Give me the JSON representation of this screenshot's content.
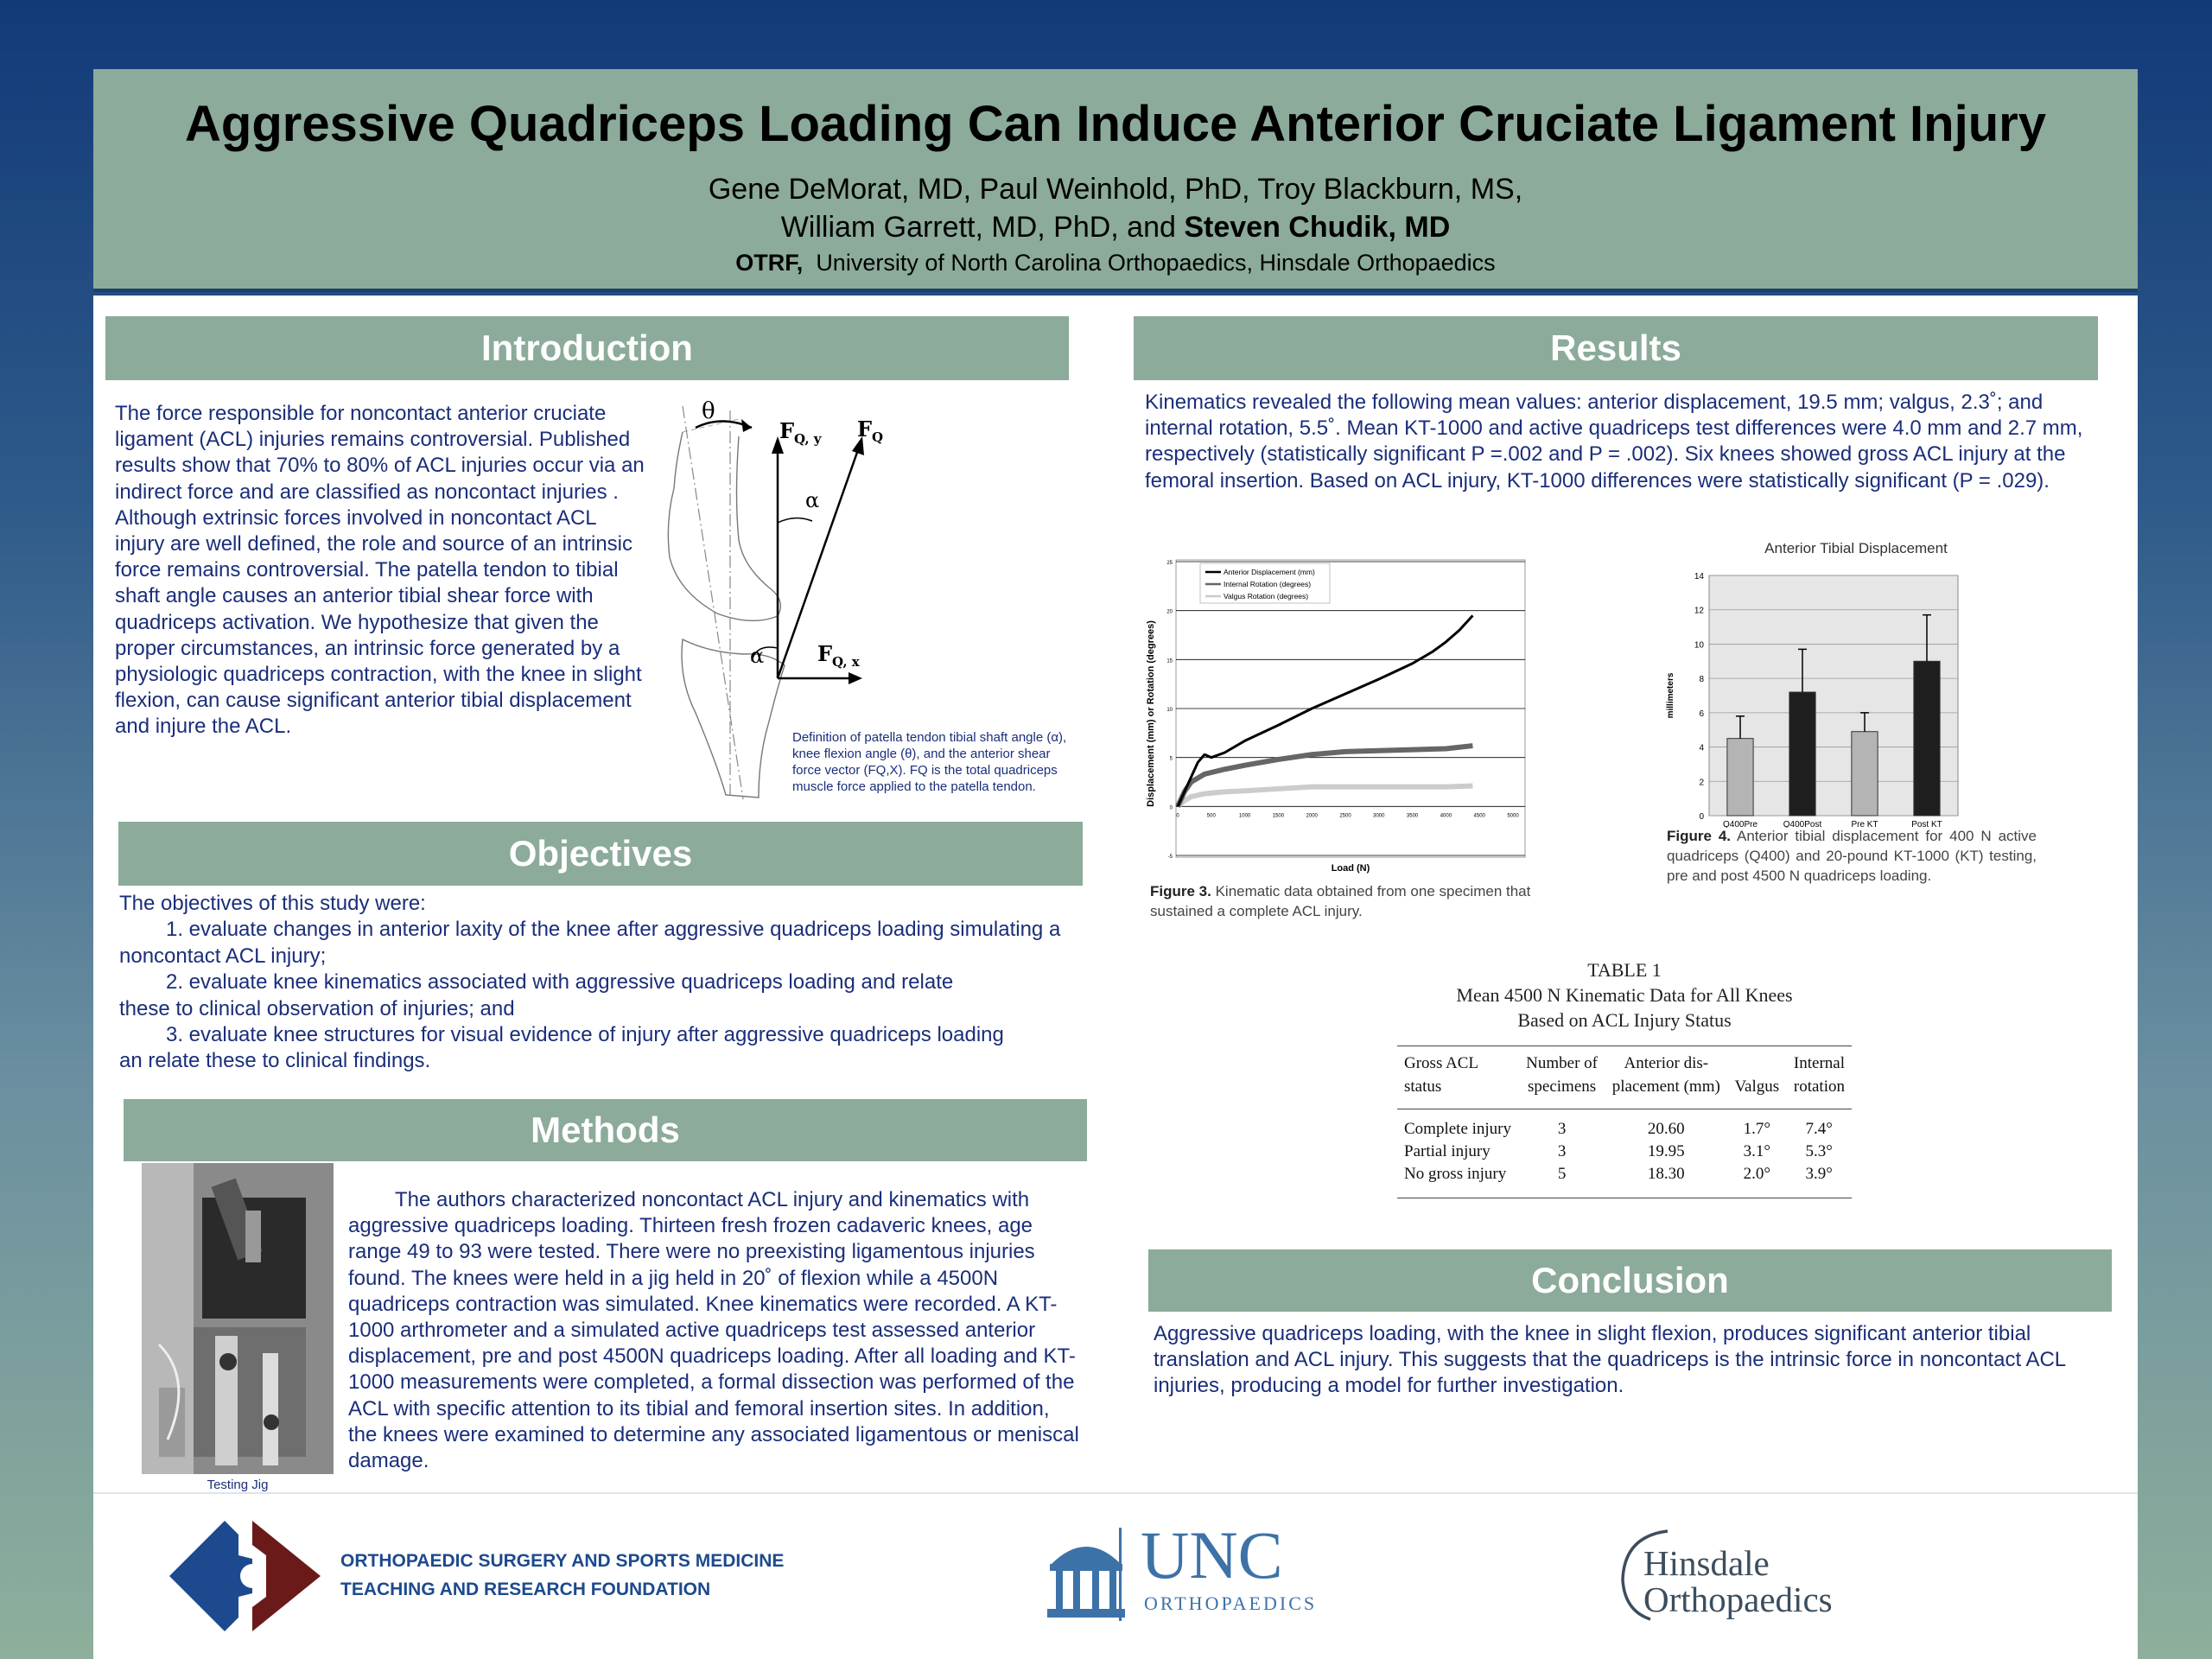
{
  "header": {
    "title": "Aggressive Quadriceps Loading Can Induce Anterior Cruciate Ligament Injury",
    "authors_line1": "Gene DeMorat, MD, Paul Weinhold, PhD, Troy Blackburn, MS,",
    "authors_line2_plain": "William Garrett, MD, PhD, and ",
    "authors_line2_bold": "Steven Chudik, MD",
    "affil_bold": "OTRF,",
    "affil_rest": "University of North Carolina Orthopaedics, Hinsdale Orthopaedics"
  },
  "intro": {
    "heading": "Introduction",
    "text": "The force responsible for noncontact anterior cruciate ligament (ACL) injuries remains controversial. Published results show that 70% to 80% of ACL injuries occur via an indirect force and are classified as noncontact injuries . Although extrinsic forces involved in noncontact ACL injury are well defined, the role and source of an intrinsic force remains controversial. The patella tendon to tibial shaft angle causes an anterior tibial shear force with quadriceps activation. We hypothesize that given the proper circumstances, an intrinsic force generated by a physiologic quadriceps contraction, with the knee in slight flexion, can cause significant anterior tibial displacement and injure the ACL.",
    "figure_caption": "Definition of patella tendon tibial shaft angle (α), knee flexion angle (θ), and the anterior shear force vector (FQ,X). FQ is the total quadriceps muscle force applied to the patella tendon.",
    "diagram_labels": {
      "theta": "θ",
      "alpha": "α",
      "fqy": "F",
      "fqy_sub": "Q, y",
      "fq": "F",
      "fq_sub": "Q",
      "fqx": "F",
      "fqx_sub": "Q, x"
    }
  },
  "objectives": {
    "heading": "Objectives",
    "lines": [
      "The objectives of this study were:",
      "1. evaluate changes in anterior laxity of the knee after aggressive quadriceps loading simulating a",
      "noncontact ACL injury;",
      "2. evaluate knee kinematics associated with aggressive quadriceps loading and relate",
      "these to clinical observation of injuries; and",
      "3. evaluate knee structures for visual evidence of injury after aggressive quadriceps loading",
      "an relate these to clinical findings."
    ]
  },
  "methods": {
    "heading": "Methods",
    "text": "The authors characterized noncontact ACL injury and kinematics with aggressive quadriceps loading. Thirteen fresh frozen cadaveric knees, age range 49 to 93 were tested. There were no preexisting ligamentous injuries found. The knees were held in a jig held in 20˚ of flexion while a 4500N quadriceps contraction was simulated. Knee kinematics were recorded. A KT-1000 arthrometer and a simulated active quadriceps test assessed anterior displacement, pre and post 4500N quadriceps loading. After all loading and KT-1000 measurements were completed, a formal dissection was performed of the ACL with specific attention to its tibial and femoral insertion sites. In addition, the knees were examined to determine any associated ligamentous or meniscal damage.",
    "photo_caption": "Testing Jig"
  },
  "results": {
    "heading": "Results",
    "text": "Kinematics revealed the following mean values: anterior displacement, 19.5 mm; valgus, 2.3˚; and internal rotation, 5.5˚. Mean KT-1000 and active quadriceps test differences were 4.0 mm and 2.7 mm, respectively (statistically significant P =.002 and P = .002). Six knees showed gross ACL injury at the femoral insertion. Based on ACL injury, KT-1000 differences were statistically significant (P = .029).",
    "fig3_caption_bold": "Figure 3.",
    "fig3_caption": " Kinematic data obtained from one specimen that sustained a complete ACL injury.",
    "fig4_caption_bold": "Figure 4.",
    "fig4_caption": " Anterior tibial displacement for 400 N active quadriceps (Q400) and 20-pound KT-1000 (KT) testing, pre and post 4500 N quadriceps loading."
  },
  "chart_data": [
    {
      "type": "line",
      "xlabel": "Load (N)",
      "ylabel": "Displacement (mm) or Rotation (degrees)",
      "xlim": [
        0,
        5000
      ],
      "ylim": [
        -5,
        25
      ],
      "xticks": [
        0,
        500,
        1000,
        1500,
        2000,
        2500,
        3000,
        3500,
        4000,
        4500,
        5000
      ],
      "yticks": [
        -5,
        0,
        5,
        10,
        15,
        20,
        25
      ],
      "grid": "horizontal",
      "legend_position": "top-left",
      "series": [
        {
          "name": "Anterior Displacement (mm)",
          "color": "#000000",
          "x": [
            0,
            100,
            200,
            300,
            400,
            500,
            700,
            1000,
            1500,
            2000,
            2500,
            3000,
            3500,
            3800,
            4000,
            4200,
            4400
          ],
          "y": [
            0,
            1.5,
            3,
            4.5,
            5.3,
            5,
            5.5,
            6.7,
            8.3,
            10,
            11.5,
            13,
            14.6,
            15.8,
            16.8,
            18,
            19.5
          ]
        },
        {
          "name": "Internal Rotation (degrees)",
          "color": "#666666",
          "x": [
            0,
            100,
            200,
            400,
            700,
            1000,
            1500,
            2000,
            2500,
            3000,
            3500,
            4000,
            4400
          ],
          "y": [
            0,
            1.5,
            2.5,
            3.3,
            3.8,
            4.2,
            4.8,
            5.3,
            5.6,
            5.7,
            5.8,
            5.9,
            6.2
          ]
        },
        {
          "name": "Valgus Rotation (degrees)",
          "color": "#cccccc",
          "x": [
            0,
            100,
            200,
            400,
            700,
            1000,
            1500,
            2000,
            2500,
            3000,
            3500,
            4000,
            4400
          ],
          "y": [
            0,
            0.6,
            1,
            1.3,
            1.5,
            1.6,
            1.8,
            2,
            2,
            2,
            2,
            2,
            2.1
          ]
        }
      ]
    },
    {
      "type": "bar",
      "title": "Anterior Tibial Displacement",
      "ylabel": "millimeters",
      "ylim": [
        0,
        14
      ],
      "yticks": [
        0,
        2,
        4,
        6,
        8,
        10,
        12,
        14
      ],
      "categories": [
        "Q400Pre",
        "Q400Post",
        "Pre KT",
        "Post KT"
      ],
      "values": [
        4.5,
        7.2,
        4.9,
        9.0
      ],
      "errors": [
        1.3,
        2.5,
        1.1,
        2.7
      ],
      "colors": [
        "#b4b4b4",
        "#1e1e1e",
        "#b4b4b4",
        "#1e1e1e"
      ]
    }
  ],
  "table1": {
    "label": "TABLE 1",
    "title1": "Mean 4500 N Kinematic Data for All Knees",
    "title2": "Based on ACL Injury Status",
    "headers": [
      [
        "Gross ACL",
        "status"
      ],
      [
        "Number of",
        "specimens"
      ],
      [
        "Anterior dis-",
        "placement (mm)"
      ],
      [
        "",
        "Valgus"
      ],
      [
        "Internal",
        "rotation"
      ]
    ],
    "rows": [
      [
        "Complete injury",
        "3",
        "20.60",
        "1.7°",
        "7.4°"
      ],
      [
        "Partial injury",
        "3",
        "19.95",
        "3.1°",
        "5.3°"
      ],
      [
        "No gross injury",
        "5",
        "18.30",
        "2.0°",
        "3.9°"
      ]
    ]
  },
  "conclusion": {
    "heading": "Conclusion",
    "text": "Aggressive quadriceps loading, with the knee in slight flexion, produces significant anterior tibial translation and ACL injury. This suggests that the quadriceps is the intrinsic force in noncontact ACL injuries, producing a model for further investigation."
  },
  "logos": {
    "otrf_line1": "ORTHOPAEDIC SURGERY AND SPORTS MEDICINE",
    "otrf_line2": "TEACHING AND RESEARCH FOUNDATION",
    "unc_main": "UNC",
    "unc_sub": "ORTHOPAEDICS",
    "hinsdale_line1": "Hinsdale",
    "hinsdale_line2": "Orthopaedics",
    "colors": {
      "otrf_blue": "#1d4a8e",
      "otrf_red": "#6b1a1a",
      "unc_blue": "#3d72a8",
      "hinsdale_gray": "#3c4e5e"
    }
  }
}
